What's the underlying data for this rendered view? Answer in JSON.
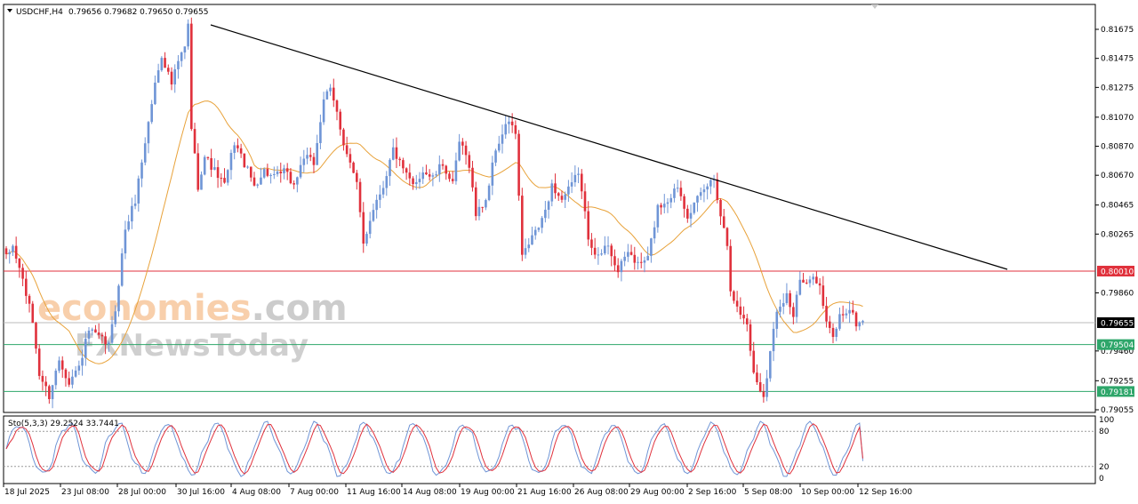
{
  "header": {
    "symbol": "USDCHF,H4",
    "ohlc": "0.79656 0.79682 0.79650 0.79655"
  },
  "oscillator": {
    "label": "Sto(5,3,3) 29.2524 33.7441",
    "scale": [
      "100",
      "80",
      "20",
      "0"
    ]
  },
  "watermark": {
    "brand_part1": "economies",
    "brand_part2": ".com",
    "brand_part3": "FXNewsToday"
  },
  "price_badges": [
    {
      "label": "0.80010",
      "color": "#e0313c"
    },
    {
      "label": "0.79655",
      "color": "#000000"
    },
    {
      "label": "0.79504",
      "color": "#2ea66a"
    },
    {
      "label": "0.79181",
      "color": "#2ea66a"
    }
  ],
  "colors": {
    "bull": "#6f95d6",
    "bear": "#e0313c",
    "ma": "#e8a23a",
    "stoch_main": "#6f95d6",
    "stoch_signal": "#e0313c"
  },
  "chart_data": {
    "type": "candlestick",
    "symbol": "USDCHF",
    "timeframe": "H4",
    "y_ticks": [
      "0.81675",
      "0.81475",
      "0.81275",
      "0.81070",
      "0.80870",
      "0.80670",
      "0.80465",
      "0.80265",
      "0.79860",
      "0.79460",
      "0.79255",
      "0.79055"
    ],
    "ylim": [
      0.7898,
      0.8186
    ],
    "x_ticks": [
      "18 Jul 2025",
      "23 Jul 08:00",
      "28 Jul 00:00",
      "30 Jul 16:00",
      "4 Aug 08:00",
      "7 Aug 00:00",
      "11 Aug 16:00",
      "14 Aug 08:00",
      "19 Aug 00:00",
      "21 Aug 16:00",
      "26 Aug 08:00",
      "29 Aug 00:00",
      "2 Sep 16:00",
      "5 Sep 08:00",
      "10 Sep 00:00",
      "12 Sep 16:00"
    ],
    "horizontal_lines": [
      {
        "price": 0.8001,
        "color": "#e0313c"
      },
      {
        "price": 0.79655,
        "color": "#bbbbbb"
      },
      {
        "price": 0.79504,
        "color": "#2ea66a"
      },
      {
        "price": 0.79181,
        "color": "#2ea66a"
      }
    ],
    "trendline": {
      "from": {
        "time": "30 Jul 16:00",
        "price": 0.8168
      },
      "to": {
        "time": "12 Sep 16:00",
        "price": 0.8001
      }
    },
    "close_anchors": [
      [
        0,
        0.801
      ],
      [
        2,
        0.8018
      ],
      [
        5,
        0.7995
      ],
      [
        8,
        0.7966
      ],
      [
        10,
        0.793
      ],
      [
        13,
        0.7915
      ],
      [
        16,
        0.794
      ],
      [
        19,
        0.7925
      ],
      [
        22,
        0.7935
      ],
      [
        25,
        0.796
      ],
      [
        28,
        0.7955
      ],
      [
        31,
        0.795
      ],
      [
        33,
        0.7975
      ],
      [
        36,
        0.803
      ],
      [
        39,
        0.805
      ],
      [
        42,
        0.809
      ],
      [
        45,
        0.813
      ],
      [
        47,
        0.815
      ],
      [
        50,
        0.813
      ],
      [
        52,
        0.8145
      ],
      [
        54,
        0.8155
      ],
      [
        55,
        0.817
      ],
      [
        56,
        0.81
      ],
      [
        58,
        0.806
      ],
      [
        60,
        0.808
      ],
      [
        63,
        0.807
      ],
      [
        66,
        0.806
      ],
      [
        69,
        0.809
      ],
      [
        72,
        0.8075
      ],
      [
        75,
        0.806
      ],
      [
        78,
        0.807
      ],
      [
        81,
        0.8065
      ],
      [
        84,
        0.807
      ],
      [
        87,
        0.806
      ],
      [
        90,
        0.808
      ],
      [
        93,
        0.8075
      ],
      [
        96,
        0.812
      ],
      [
        98,
        0.8125
      ],
      [
        100,
        0.811
      ],
      [
        102,
        0.809
      ],
      [
        104,
        0.8075
      ],
      [
        106,
        0.806
      ],
      [
        108,
        0.802
      ],
      [
        111,
        0.8045
      ],
      [
        114,
        0.806
      ],
      [
        117,
        0.8085
      ],
      [
        120,
        0.807
      ],
      [
        123,
        0.806
      ],
      [
        126,
        0.807
      ],
      [
        129,
        0.8065
      ],
      [
        132,
        0.8075
      ],
      [
        135,
        0.806
      ],
      [
        137,
        0.809
      ],
      [
        140,
        0.8075
      ],
      [
        142,
        0.804
      ],
      [
        145,
        0.805
      ],
      [
        148,
        0.8085
      ],
      [
        150,
        0.8095
      ],
      [
        152,
        0.8105
      ],
      [
        154,
        0.8095
      ],
      [
        156,
        0.801
      ],
      [
        159,
        0.8025
      ],
      [
        162,
        0.8035
      ],
      [
        165,
        0.806
      ],
      [
        168,
        0.805
      ],
      [
        171,
        0.806
      ],
      [
        173,
        0.807
      ],
      [
        176,
        0.8025
      ],
      [
        179,
        0.801
      ],
      [
        182,
        0.802
      ],
      [
        185,
        0.8
      ],
      [
        188,
        0.8015
      ],
      [
        191,
        0.8005
      ],
      [
        194,
        0.801
      ],
      [
        197,
        0.8045
      ],
      [
        200,
        0.805
      ],
      [
        203,
        0.806
      ],
      [
        206,
        0.804
      ],
      [
        209,
        0.805
      ],
      [
        212,
        0.806
      ],
      [
        214,
        0.8065
      ],
      [
        216,
        0.804
      ],
      [
        218,
        0.802
      ],
      [
        219,
        0.799
      ],
      [
        221,
        0.7975
      ],
      [
        224,
        0.7965
      ],
      [
        226,
        0.793
      ],
      [
        228,
        0.792
      ],
      [
        229,
        0.7915
      ],
      [
        231,
        0.7945
      ],
      [
        233,
        0.7975
      ],
      [
        236,
        0.7985
      ],
      [
        238,
        0.797
      ],
      [
        240,
        0.7995
      ],
      [
        242,
        0.799
      ],
      [
        244,
        0.8
      ],
      [
        246,
        0.799
      ],
      [
        248,
        0.7965
      ],
      [
        250,
        0.7955
      ],
      [
        252,
        0.797
      ],
      [
        255,
        0.7975
      ],
      [
        257,
        0.7965
      ],
      [
        259,
        0.7966
      ]
    ],
    "stochastic": {
      "k": 29.2524,
      "d": 33.7441,
      "levels": [
        80,
        20
      ]
    }
  }
}
